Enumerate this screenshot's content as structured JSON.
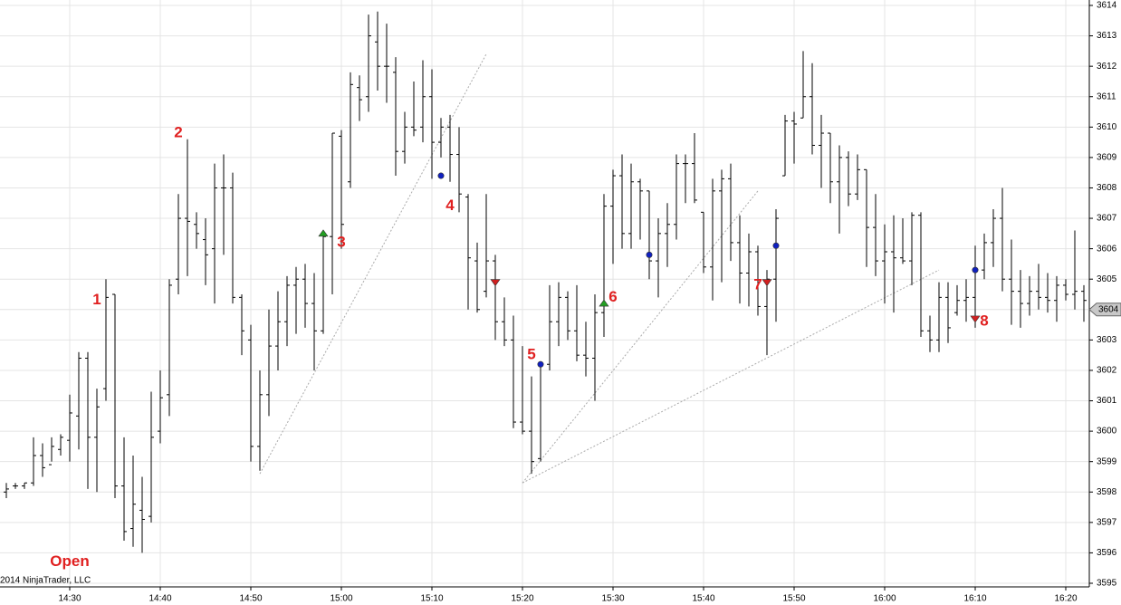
{
  "chart_data": {
    "type": "ohlc",
    "x": [
      "14:23",
      "14:24",
      "14:25",
      "14:26",
      "14:27",
      "14:28",
      "14:29",
      "14:30",
      "14:31",
      "14:32",
      "14:33",
      "14:34",
      "14:35",
      "14:36",
      "14:37",
      "14:38",
      "14:39",
      "14:40",
      "14:41",
      "14:42",
      "14:43",
      "14:44",
      "14:45",
      "14:46",
      "14:47",
      "14:48",
      "14:49",
      "14:50",
      "14:51",
      "14:52",
      "14:53",
      "14:54",
      "14:55",
      "14:56",
      "14:57",
      "14:58",
      "14:59",
      "15:00",
      "15:01",
      "15:02",
      "15:03",
      "15:04",
      "15:05",
      "15:06",
      "15:07",
      "15:08",
      "15:09",
      "15:10",
      "15:11",
      "15:12",
      "15:13",
      "15:14",
      "15:15",
      "15:16",
      "15:17",
      "15:18",
      "15:19",
      "15:20",
      "15:21",
      "15:22",
      "15:23",
      "15:24",
      "15:25",
      "15:26",
      "15:27",
      "15:28",
      "15:29",
      "15:30",
      "15:31",
      "15:32",
      "15:33",
      "15:34",
      "15:35",
      "15:36",
      "15:37",
      "15:38",
      "15:39",
      "15:40",
      "15:41",
      "15:42",
      "15:43",
      "15:44",
      "15:45",
      "15:46",
      "15:47",
      "15:48",
      "15:49",
      "15:50",
      "15:51",
      "15:52",
      "15:53",
      "15:54",
      "15:55",
      "15:56",
      "15:57",
      "15:58",
      "15:59",
      "16:00",
      "16:01",
      "16:02",
      "16:03",
      "16:04",
      "16:05",
      "16:06",
      "16:07",
      "16:08",
      "16:09",
      "16:10",
      "16:11",
      "16:12",
      "16:13",
      "16:14",
      "16:15",
      "16:16",
      "16:17",
      "16:18",
      "16:19",
      "16:20",
      "16:21",
      "16:22"
    ],
    "open": [
      3598.0,
      3598.2,
      3598.2,
      3598.3,
      3599.2,
      3598.9,
      3599.4,
      3599.7,
      3600.5,
      3602.4,
      3599.8,
      3601.4,
      3604.5,
      3598.2,
      3596.8,
      3597.4,
      3597.2,
      3600.0,
      3601.2,
      3605.0,
      3607.0,
      3606.8,
      3606.3,
      3606.0,
      3608.0,
      3608.0,
      3604.4,
      3603.0,
      3599.5,
      3601.2,
      3602.8,
      3603.6,
      3604.8,
      3605.0,
      3604.2,
      3603.3,
      3606.4,
      3609.7,
      3608.2,
      3611.3,
      3611.0,
      3612.8,
      3612.0,
      3611.8,
      3609.2,
      3610.0,
      3610.0,
      3611.0,
      3609.5,
      3610.0,
      3609.1,
      3607.7,
      3605.6,
      3604.6,
      3605.6,
      3603.6,
      3603.0,
      3600.3,
      3600.0,
      3599.1,
      3602.2,
      3603.6,
      3604.4,
      3603.3,
      3602.5,
      3602.4,
      3603.9,
      3607.4,
      3608.4,
      3606.5,
      3608.2,
      3607.9,
      3605.6,
      3606.5,
      3606.8,
      3608.8,
      3608.8,
      3607.2,
      3605.4,
      3607.9,
      3608.3,
      3606.2,
      3605.2,
      3605.9,
      3604.1,
      3605.0,
      3608.4,
      3610.2,
      3610.3,
      3611.0,
      3609.4,
      3609.8,
      3608.2,
      3609.0,
      3607.8,
      3608.6,
      3606.7,
      3605.6,
      3605.9,
      3605.7,
      3605.6,
      3607.1,
      3603.3,
      3603.0,
      3604.4,
      3603.9,
      3604.3,
      3604.4,
      3605.3,
      3606.2,
      3607.0,
      3605.0,
      3604.6,
      3604.2,
      3604.6,
      3604.4,
      3604.3,
      3604.8,
      3604.5,
      3604.6
    ],
    "high": [
      3598.3,
      3598.3,
      3598.3,
      3599.8,
      3599.6,
      3599.8,
      3599.9,
      3601.2,
      3602.6,
      3602.6,
      3601.4,
      3605.0,
      3604.5,
      3599.8,
      3599.2,
      3598.5,
      3601.3,
      3602.0,
      3605.0,
      3607.8,
      3609.6,
      3607.2,
      3607.0,
      3608.8,
      3609.1,
      3608.5,
      3604.5,
      3603.5,
      3602.0,
      3604.0,
      3604.6,
      3605.1,
      3605.4,
      3605.5,
      3605.2,
      3606.6,
      3609.8,
      3609.9,
      3611.8,
      3611.7,
      3613.7,
      3613.8,
      3613.4,
      3612.3,
      3610.5,
      3611.5,
      3612.2,
      3611.9,
      3610.3,
      3610.4,
      3610.0,
      3607.8,
      3606.2,
      3607.8,
      3605.8,
      3604.4,
      3603.8,
      3602.8,
      3601.8,
      3602.3,
      3604.8,
      3604.9,
      3604.6,
      3604.8,
      3603.6,
      3604.5,
      3607.8,
      3608.6,
      3609.1,
      3608.8,
      3608.3,
      3607.9,
      3607.0,
      3607.5,
      3609.1,
      3609.1,
      3609.8,
      3607.2,
      3608.3,
      3608.6,
      3608.8,
      3607.1,
      3606.5,
      3606.1,
      3605.3,
      3607.3,
      3610.4,
      3610.5,
      3612.5,
      3612.1,
      3610.4,
      3609.8,
      3609.4,
      3609.2,
      3609.1,
      3608.6,
      3607.8,
      3606.8,
      3607.1,
      3607.0,
      3607.2,
      3607.2,
      3603.8,
      3604.9,
      3604.9,
      3604.8,
      3605.0,
      3606.1,
      3606.5,
      3607.3,
      3608.0,
      3606.3,
      3605.3,
      3605.1,
      3605.5,
      3605.2,
      3605.1,
      3605.0,
      3606.6,
      3604.8
    ],
    "low": [
      3597.8,
      3598.1,
      3598.1,
      3598.2,
      3598.5,
      3599.0,
      3599.2,
      3599.0,
      3599.4,
      3598.1,
      3598.0,
      3601.0,
      3597.8,
      3596.4,
      3596.2,
      3596.0,
      3597.0,
      3599.6,
      3600.5,
      3604.5,
      3605.1,
      3606.0,
      3604.8,
      3604.2,
      3605.8,
      3604.2,
      3602.5,
      3599.0,
      3598.7,
      3600.5,
      3602.0,
      3602.8,
      3603.2,
      3603.4,
      3602.0,
      3603.2,
      3604.5,
      3606.0,
      3608.0,
      3610.2,
      3610.5,
      3611.2,
      3610.8,
      3608.4,
      3608.8,
      3609.7,
      3609.5,
      3608.3,
      3609.0,
      3608.2,
      3607.2,
      3604.0,
      3603.9,
      3604.4,
      3603.0,
      3602.8,
      3600.1,
      3599.9,
      3598.6,
      3599.0,
      3602.0,
      3602.8,
      3603.0,
      3602.3,
      3601.8,
      3601.0,
      3603.1,
      3605.5,
      3606.0,
      3606.0,
      3606.3,
      3605.0,
      3604.4,
      3605.4,
      3606.3,
      3607.5,
      3607.5,
      3605.2,
      3604.3,
      3604.9,
      3605.6,
      3604.2,
      3604.1,
      3603.8,
      3602.5,
      3603.6,
      3608.4,
      3608.8,
      3610.3,
      3609.1,
      3608.0,
      3607.5,
      3606.5,
      3607.4,
      3607.6,
      3605.4,
      3605.1,
      3604.2,
      3603.9,
      3605.5,
      3604.8,
      3603.1,
      3602.6,
      3602.6,
      3602.9,
      3603.8,
      3603.6,
      3603.4,
      3605.0,
      3605.4,
      3604.6,
      3603.5,
      3603.4,
      3603.8,
      3604.0,
      3603.9,
      3603.6,
      3604.3,
      3604.0,
      3603.6
    ],
    "close": [
      3598.1,
      3598.2,
      3598.3,
      3599.2,
      3598.8,
      3599.5,
      3599.8,
      3600.6,
      3602.4,
      3599.8,
      3600.8,
      3604.4,
      3598.2,
      3596.7,
      3597.6,
      3597.1,
      3599.8,
      3601.1,
      3604.8,
      3607.0,
      3606.9,
      3606.5,
      3605.8,
      3608.0,
      3608.0,
      3604.4,
      3603.3,
      3599.5,
      3601.2,
      3602.8,
      3603.6,
      3604.8,
      3605.0,
      3604.2,
      3603.3,
      3606.4,
      3609.8,
      3606.8,
      3611.4,
      3610.9,
      3613.0,
      3612.0,
      3612.0,
      3609.2,
      3610.0,
      3609.9,
      3611.0,
      3609.5,
      3610.0,
      3609.1,
      3607.8,
      3605.7,
      3604.0,
      3605.6,
      3603.6,
      3603.0,
      3600.3,
      3600.0,
      3599.0,
      3602.2,
      3603.6,
      3604.4,
      3603.3,
      3602.5,
      3602.4,
      3603.9,
      3607.4,
      3608.4,
      3606.5,
      3608.2,
      3607.9,
      3605.6,
      3606.5,
      3606.8,
      3608.8,
      3608.8,
      3607.6,
      3605.4,
      3607.9,
      3608.3,
      3606.2,
      3605.2,
      3605.9,
      3604.1,
      3605.0,
      3607.0,
      3610.2,
      3610.1,
      3611.0,
      3609.4,
      3609.8,
      3608.2,
      3609.0,
      3607.8,
      3608.6,
      3606.7,
      3605.6,
      3605.9,
      3605.7,
      3605.6,
      3607.1,
      3603.3,
      3603.0,
      3604.4,
      3603.4,
      3604.3,
      3604.4,
      3605.3,
      3606.2,
      3607.0,
      3605.0,
      3604.6,
      3604.2,
      3604.6,
      3604.4,
      3604.3,
      3604.8,
      3604.5,
      3604.6,
      3604.3
    ],
    "color": "#000000",
    "ylim": [
      3595,
      3614
    ],
    "yticks": [
      3595,
      3596,
      3597,
      3598,
      3599,
      3600,
      3601,
      3602,
      3603,
      3604,
      3605,
      3606,
      3607,
      3608,
      3609,
      3610,
      3611,
      3612,
      3613,
      3614
    ],
    "xticks": [
      "14:30",
      "14:40",
      "14:50",
      "15:00",
      "15:10",
      "15:20",
      "15:30",
      "15:40",
      "15:50",
      "16:00",
      "16:10",
      "16:20"
    ],
    "grid": true,
    "markers": [
      {
        "x": "14:58",
        "y": 3606.5,
        "shape": "triangle-up",
        "color": "#22a022"
      },
      {
        "x": "15:29",
        "y": 3604.2,
        "shape": "triangle-up",
        "color": "#22a022"
      },
      {
        "x": "15:17",
        "y": 3604.9,
        "shape": "triangle-down",
        "color": "#d02020"
      },
      {
        "x": "15:47",
        "y": 3604.9,
        "shape": "triangle-down",
        "color": "#d02020"
      },
      {
        "x": "16:10",
        "y": 3603.7,
        "shape": "triangle-down",
        "color": "#d02020"
      },
      {
        "x": "15:11",
        "y": 3608.4,
        "shape": "dot",
        "color": "#1020c0"
      },
      {
        "x": "15:22",
        "y": 3602.2,
        "shape": "dot",
        "color": "#1020c0"
      },
      {
        "x": "15:34",
        "y": 3605.8,
        "shape": "dot",
        "color": "#1020c0"
      },
      {
        "x": "15:48",
        "y": 3606.1,
        "shape": "dot",
        "color": "#1020c0"
      },
      {
        "x": "16:10",
        "y": 3605.3,
        "shape": "dot",
        "color": "#1020c0"
      }
    ],
    "trend_lines": [
      {
        "x": [
          "14:51",
          "15:16"
        ],
        "y": [
          3598.6,
          3612.4
        ]
      },
      {
        "x": [
          "15:20",
          "15:46"
        ],
        "y": [
          3598.3,
          3607.9
        ]
      },
      {
        "x": [
          "15:20",
          "16:06"
        ],
        "y": [
          3598.3,
          3605.3
        ]
      }
    ],
    "annotations": [
      {
        "text": "1",
        "x": "14:33",
        "y": 3604.3
      },
      {
        "text": "2",
        "x": "14:42",
        "y": 3609.8
      },
      {
        "text": "3",
        "x": "15:00",
        "y": 3606.2
      },
      {
        "text": "4",
        "x": "15:12",
        "y": 3607.4
      },
      {
        "text": "5",
        "x": "15:21",
        "y": 3602.5
      },
      {
        "text": "6",
        "x": "15:30",
        "y": 3604.4
      },
      {
        "text": "7",
        "x": "15:46",
        "y": 3604.8
      },
      {
        "text": "8",
        "x": "16:11",
        "y": 3603.6
      },
      {
        "text": "Open",
        "x": "14:30",
        "y": 3595.7
      }
    ],
    "annotation_color": "#e02020",
    "last_price": 3604,
    "copyright": "2014 NinjaTrader, LLC"
  }
}
